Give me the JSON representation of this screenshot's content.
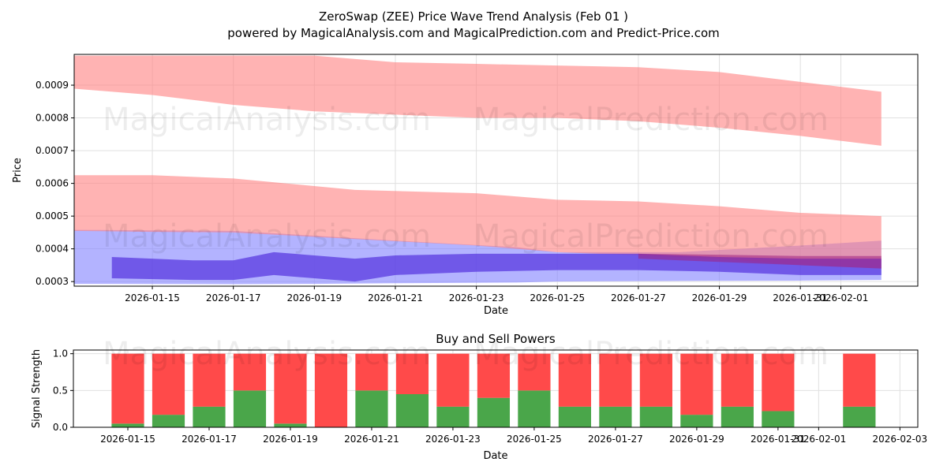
{
  "chart_data": [
    {
      "type": "area",
      "title": "ZeroSwap (ZEE) Price Wave Trend Analysis (Feb 01 )",
      "subtitle": "powered by MagicalAnalysis.com and MagicalPrediction.com and Predict-Price.com",
      "xlabel": "Date",
      "ylabel": "Price",
      "x_ticks": [
        "2026-01-15",
        "2026-01-17",
        "2026-01-19",
        "2026-01-21",
        "2026-01-23",
        "2026-01-25",
        "2026-01-27",
        "2026-01-29",
        "2026-01-31",
        "2026-02-01"
      ],
      "y_ticks": [
        "0.0003",
        "0.0004",
        "0.0005",
        "0.0006",
        "0.0007",
        "0.0008",
        "0.0009"
      ],
      "ylim": [
        0.000286,
        0.000994
      ],
      "grid": true,
      "bands": [
        {
          "name": "upper-red-band",
          "color": "#ff8080",
          "opacity": 0.6,
          "x": [
            "2026-01-13",
            "2026-01-15",
            "2026-01-17",
            "2026-01-19",
            "2026-01-21",
            "2026-01-23",
            "2026-01-25",
            "2026-01-27",
            "2026-01-29",
            "2026-01-31",
            "2026-02-02"
          ],
          "upper": [
            0.00099,
            0.00099,
            0.00099,
            0.00099,
            0.00097,
            0.000965,
            0.00096,
            0.000955,
            0.00094,
            0.00091,
            0.00088
          ],
          "lower": [
            0.00089,
            0.00087,
            0.00084,
            0.00082,
            0.00081,
            0.0008,
            0.0008,
            0.00079,
            0.00077,
            0.000745,
            0.000715
          ]
        },
        {
          "name": "blue-band",
          "color": "#8080ff",
          "opacity": 0.6,
          "x": [
            "2026-01-13",
            "2026-01-17",
            "2026-01-19",
            "2026-01-21",
            "2026-01-24",
            "2026-01-25",
            "2026-01-28",
            "2026-01-31",
            "2026-02-02"
          ],
          "upper": [
            0.000458,
            0.000455,
            0.00044,
            0.000425,
            0.000405,
            0.00039,
            0.00039,
            0.00041,
            0.000425
          ],
          "lower": [
            0.000293,
            0.000292,
            0.000293,
            0.000295,
            0.000297,
            0.0003,
            0.000302,
            0.000303,
            0.000305
          ]
        },
        {
          "name": "lower-red-band",
          "color": "#ff8080",
          "opacity": 0.6,
          "x": [
            "2026-01-13",
            "2026-01-15",
            "2026-01-17",
            "2026-01-20",
            "2026-01-23",
            "2026-01-25",
            "2026-01-27",
            "2026-01-29",
            "2026-01-31",
            "2026-02-02"
          ],
          "upper": [
            0.000625,
            0.000625,
            0.000615,
            0.00058,
            0.00057,
            0.00055,
            0.000545,
            0.00053,
            0.00051,
            0.0005
          ],
          "lower": [
            0.000455,
            0.000452,
            0.00045,
            0.00043,
            0.00041,
            0.00039,
            0.00038,
            0.00037,
            0.00035,
            0.00034
          ]
        },
        {
          "name": "inner-wave-band",
          "color": "#5a3ae0",
          "opacity": 0.75,
          "x": [
            "2026-01-14",
            "2026-01-16",
            "2026-01-17",
            "2026-01-18",
            "2026-01-20",
            "2026-01-21",
            "2026-01-23",
            "2026-01-25",
            "2026-01-27",
            "2026-01-29",
            "2026-01-31",
            "2026-02-02"
          ],
          "upper": [
            0.000375,
            0.000365,
            0.000365,
            0.00039,
            0.00037,
            0.00038,
            0.000385,
            0.000385,
            0.000385,
            0.000375,
            0.00037,
            0.00037
          ],
          "lower": [
            0.00031,
            0.000305,
            0.000305,
            0.00032,
            0.0003,
            0.00032,
            0.00033,
            0.000335,
            0.000335,
            0.00033,
            0.00032,
            0.00032
          ]
        },
        {
          "name": "inner-red-wave",
          "color": "#a02080",
          "opacity": 0.55,
          "x": [
            "2026-01-27",
            "2026-01-29",
            "2026-01-31",
            "2026-02-02"
          ],
          "upper": [
            0.000385,
            0.000382,
            0.000378,
            0.000378
          ],
          "lower": [
            0.00037,
            0.00036,
            0.00035,
            0.00034
          ]
        }
      ]
    },
    {
      "type": "bar",
      "title": "Buy and Sell Powers",
      "xlabel": "Date",
      "ylabel": "Signal Strength",
      "x_ticks": [
        "2026-01-15",
        "2026-01-17",
        "2026-01-19",
        "2026-01-21",
        "2026-01-23",
        "2026-01-25",
        "2026-01-27",
        "2026-01-29",
        "2026-01-31",
        "2026-02-01",
        "2026-02-03"
      ],
      "y_ticks": [
        "0.0",
        "0.5",
        "1.0"
      ],
      "ylim": [
        0,
        1.05
      ],
      "categories": [
        "2026-01-15",
        "2026-01-16",
        "2026-01-17",
        "2026-01-18",
        "2026-01-19",
        "2026-01-20",
        "2026-01-21",
        "2026-01-22",
        "2026-01-23",
        "2026-01-24",
        "2026-01-25",
        "2026-01-26",
        "2026-01-27",
        "2026-01-28",
        "2026-01-29",
        "2026-01-30",
        "2026-01-31",
        "2026-02-02"
      ],
      "series": [
        {
          "name": "Buy",
          "color": "#4aa64a",
          "values": [
            0.05,
            0.17,
            0.28,
            0.5,
            0.05,
            0,
            0.5,
            0.45,
            0.28,
            0.4,
            0.5,
            0.28,
            0.28,
            0.28,
            0.17,
            0.28,
            0.22,
            0.28
          ]
        },
        {
          "name": "Sell",
          "color": "#ff4a4a",
          "values": [
            0.95,
            0.83,
            0.72,
            0.5,
            0.95,
            1,
            0.5,
            0.55,
            0.72,
            0.6,
            0.5,
            0.72,
            0.72,
            0.72,
            0.83,
            0.72,
            0.78,
            0.72
          ]
        }
      ]
    }
  ],
  "watermarks": [
    "MagicalAnalysis.com",
    "MagicalPrediction.com"
  ]
}
